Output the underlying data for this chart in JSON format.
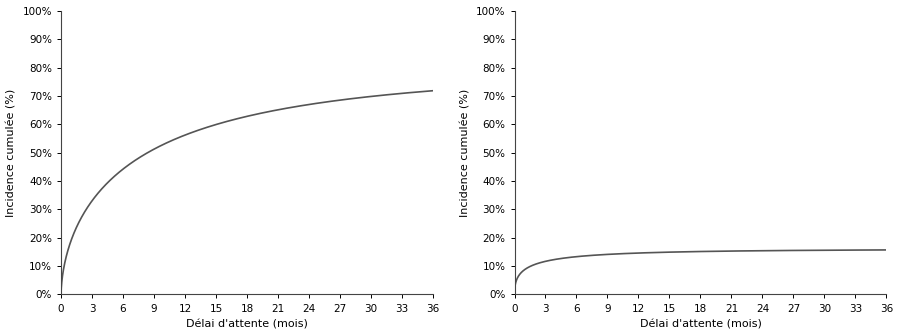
{
  "ylabel": "Incidence cumulée (%)",
  "xlabel": "Délai d'attente (mois)",
  "xlim": [
    0,
    36
  ],
  "ylim": [
    0,
    100
  ],
  "xticks": [
    0,
    3,
    6,
    9,
    12,
    15,
    18,
    21,
    24,
    27,
    30,
    33,
    36
  ],
  "yticks": [
    0,
    10,
    20,
    30,
    40,
    50,
    60,
    70,
    80,
    90,
    100
  ],
  "line_color": "#555555",
  "line_width": 1.2,
  "background_color": "#ffffff",
  "curve1": {
    "asymptote": 79.0,
    "rate": 0.28,
    "power": 0.6
  },
  "curve2": {
    "asymptote": 16.0,
    "rate": 0.8,
    "power": 0.45
  }
}
